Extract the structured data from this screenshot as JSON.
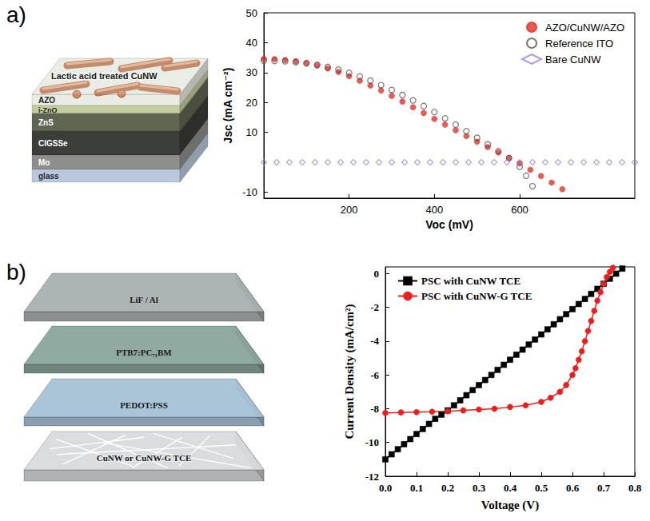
{
  "panels": [
    {
      "label": "a)",
      "diagram": {
        "top_label": "Lactic acid treated CuNW",
        "layers": [
          "AZO",
          "i-ZnO",
          "ZnS",
          "CIGSSe",
          "Mo",
          "glass"
        ]
      }
    },
    {
      "label": "b)",
      "diagram": {
        "layers": [
          "LiF / Al",
          "PTB7:PC₇₁BM",
          "PEDOT:PSS",
          "CuNW or CuNW-G TCE"
        ]
      }
    }
  ],
  "chart_data": [
    {
      "type": "scatter",
      "xlabel": "Voc (mV)",
      "ylabel": "Jsc (mA cm⁻²)",
      "xlim": [
        0,
        870
      ],
      "xticks": [
        200,
        400,
        600
      ],
      "ylim": [
        -12,
        50
      ],
      "yticks": [
        -10,
        10,
        20,
        30,
        40,
        50
      ],
      "grid": false,
      "legend": "upper right",
      "series": [
        {
          "name": "AZO/CuNW/AZO",
          "color": "#e0322a",
          "marker": "circle",
          "x": [
            0,
            25,
            50,
            75,
            100,
            125,
            150,
            175,
            200,
            225,
            250,
            275,
            300,
            325,
            350,
            375,
            400,
            425,
            450,
            475,
            500,
            525,
            550,
            575,
            600,
            625,
            650,
            675,
            700
          ],
          "values": [
            34.6,
            34.5,
            34.2,
            33.8,
            33.2,
            32.4,
            31.4,
            30.2,
            28.8,
            27.3,
            25.7,
            24.0,
            22.2,
            20.3,
            18.4,
            16.5,
            14.5,
            12.6,
            10.7,
            8.8,
            6.9,
            5.1,
            3.3,
            1.5,
            -0.4,
            -2.5,
            -4.6,
            -6.8,
            -9.0
          ]
        },
        {
          "name": "Reference ITO",
          "color": "#555555",
          "marker": "open_circle",
          "x": [
            0,
            25,
            50,
            75,
            100,
            125,
            150,
            175,
            200,
            225,
            250,
            275,
            300,
            325,
            350,
            375,
            400,
            425,
            450,
            475,
            500,
            525,
            550,
            575,
            600,
            615,
            630
          ],
          "values": [
            34.0,
            33.9,
            33.8,
            33.5,
            33.1,
            32.6,
            31.9,
            31.0,
            29.9,
            28.7,
            27.3,
            25.8,
            24.2,
            22.5,
            20.7,
            18.8,
            16.8,
            14.7,
            12.6,
            10.4,
            8.2,
            6.0,
            3.7,
            1.4,
            -1.5,
            -4.5,
            -8.0
          ]
        },
        {
          "name": "Bare CuNW",
          "color": "#9b7fd4",
          "marker": "open_diamond",
          "x": [
            0,
            30,
            60,
            90,
            120,
            150,
            180,
            210,
            240,
            270,
            300,
            330,
            360,
            390,
            420,
            450,
            480,
            510,
            540,
            570,
            600,
            630,
            660,
            690,
            720,
            750,
            780,
            810,
            840,
            870
          ],
          "values": [
            0,
            0,
            0,
            0,
            0,
            0,
            0,
            0,
            0,
            0,
            0,
            0,
            0,
            0,
            0,
            0,
            0,
            0,
            0,
            0,
            0,
            0,
            0,
            0,
            0,
            0,
            0,
            0,
            0,
            0
          ]
        }
      ]
    },
    {
      "type": "line",
      "xlabel": "Voltage (V)",
      "ylabel": "Current Density (mA/cm²)",
      "xlim": [
        0,
        0.8
      ],
      "xticks": [
        {
          "value": 0,
          "label": "0.0"
        },
        0.1,
        0.2,
        0.3,
        0.4,
        0.5,
        0.6,
        0.7,
        0.8
      ],
      "ylim": [
        -12,
        0.4
      ],
      "yticks": [
        -12,
        -10,
        -8,
        -6,
        -4,
        -2,
        0
      ],
      "grid": false,
      "legend": "upper left",
      "series": [
        {
          "name": "PSC with CuNW TCE",
          "color": "#000000",
          "marker": "square",
          "x": [
            0,
            0.02,
            0.04,
            0.06,
            0.08,
            0.1,
            0.12,
            0.14,
            0.16,
            0.18,
            0.2,
            0.22,
            0.24,
            0.26,
            0.28,
            0.3,
            0.32,
            0.34,
            0.36,
            0.38,
            0.4,
            0.42,
            0.44,
            0.46,
            0.48,
            0.5,
            0.52,
            0.54,
            0.56,
            0.58,
            0.6,
            0.62,
            0.64,
            0.66,
            0.68,
            0.7,
            0.72,
            0.74,
            0.76
          ],
          "values": [
            -11.0,
            -10.7,
            -10.4,
            -10.1,
            -9.8,
            -9.5,
            -9.2,
            -8.9,
            -8.6,
            -8.35,
            -8.1,
            -7.8,
            -7.5,
            -7.2,
            -6.9,
            -6.6,
            -6.3,
            -6.0,
            -5.7,
            -5.4,
            -5.1,
            -4.8,
            -4.5,
            -4.2,
            -3.9,
            -3.6,
            -3.3,
            -3.0,
            -2.7,
            -2.4,
            -2.1,
            -1.8,
            -1.5,
            -1.2,
            -0.9,
            -0.6,
            -0.3,
            0.0,
            0.3
          ]
        },
        {
          "name": "PSC with CuNW-G TCE",
          "color": "#ee1c1c",
          "marker": "circle",
          "x": [
            0,
            0.05,
            0.1,
            0.15,
            0.2,
            0.25,
            0.3,
            0.35,
            0.4,
            0.45,
            0.5,
            0.53,
            0.56,
            0.58,
            0.6,
            0.61,
            0.62,
            0.63,
            0.64,
            0.65,
            0.66,
            0.67,
            0.68,
            0.69,
            0.7,
            0.71,
            0.72,
            0.73
          ],
          "values": [
            -8.25,
            -8.22,
            -8.2,
            -8.18,
            -8.15,
            -8.1,
            -8.05,
            -8.0,
            -7.9,
            -7.8,
            -7.6,
            -7.35,
            -7.0,
            -6.6,
            -6.0,
            -5.6,
            -5.1,
            -4.6,
            -4.0,
            -3.4,
            -2.8,
            -2.2,
            -1.6,
            -1.1,
            -0.6,
            -0.2,
            0.1,
            0.35
          ]
        }
      ]
    }
  ]
}
